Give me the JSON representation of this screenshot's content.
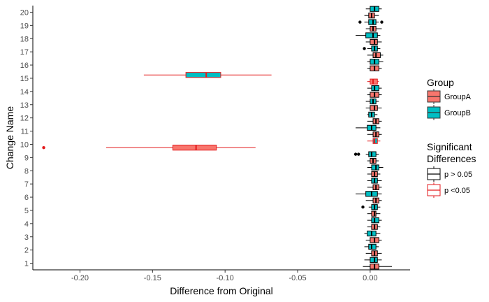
{
  "chart_data": {
    "type": "boxplot",
    "orientation": "horizontal",
    "title": "",
    "xlabel": "Difference from Original",
    "ylabel": "Change Name",
    "xlim": [
      -0.2325,
      0.0275
    ],
    "x_ticks": [
      -0.2,
      -0.15,
      -0.1,
      -0.05,
      0.0
    ],
    "x_tick_labels": [
      "-0.20",
      "-0.15",
      "-0.10",
      "-0.05",
      "0.00"
    ],
    "categories": [
      "1",
      "2",
      "3",
      "4",
      "5",
      "6",
      "7",
      "8",
      "9",
      "10",
      "11",
      "12",
      "13",
      "14",
      "15",
      "16",
      "17",
      "18",
      "19",
      "20"
    ],
    "grid": false,
    "legend_position": "right",
    "colors": {
      "GroupA": "#F8766D",
      "GroupB": "#00BFC4",
      "p > 0.05": "#000000",
      "p <0.05": "#E31A1C"
    },
    "legend": {
      "fill": {
        "title": "Group",
        "entries": [
          "GroupA",
          "GroupB"
        ]
      },
      "color": {
        "title_lines": [
          "Significant",
          "Differences"
        ],
        "entries": [
          "p > 0.05",
          "p <0.05"
        ]
      }
    },
    "series": [
      {
        "name": "GroupA",
        "boxes": [
          {
            "category": "1",
            "min": -0.005,
            "q1": 0.0,
            "median": 0.003,
            "q3": 0.006,
            "max": 0.015,
            "significance": "p > 0.05",
            "outliers": []
          },
          {
            "category": "2",
            "min": -0.003,
            "q1": 0.001,
            "median": 0.003,
            "q3": 0.005,
            "max": 0.008,
            "significance": "p > 0.05",
            "outliers": []
          },
          {
            "category": "3",
            "min": -0.003,
            "q1": 0.0,
            "median": 0.003,
            "q3": 0.006,
            "max": 0.008,
            "significance": "p > 0.05",
            "outliers": []
          },
          {
            "category": "4",
            "min": -0.002,
            "q1": 0.001,
            "median": 0.003,
            "q3": 0.005,
            "max": 0.007,
            "significance": "p > 0.05",
            "outliers": []
          },
          {
            "category": "5",
            "min": -0.002,
            "q1": 0.001,
            "median": 0.003,
            "q3": 0.004,
            "max": 0.007,
            "significance": "p > 0.05",
            "outliers": []
          },
          {
            "category": "6",
            "min": -0.003,
            "q1": 0.002,
            "median": 0.004,
            "q3": 0.006,
            "max": 0.008,
            "significance": "p > 0.05",
            "outliers": []
          },
          {
            "category": "7",
            "min": -0.002,
            "q1": 0.002,
            "median": 0.004,
            "q3": 0.006,
            "max": 0.008,
            "significance": "p > 0.05",
            "outliers": []
          },
          {
            "category": "8",
            "min": -0.002,
            "q1": 0.001,
            "median": 0.003,
            "q3": 0.005,
            "max": 0.007,
            "significance": "p > 0.05",
            "outliers": []
          },
          {
            "category": "9",
            "min": -0.002,
            "q1": 0.0,
            "median": 0.002,
            "q3": 0.004,
            "max": 0.006,
            "significance": "p > 0.05",
            "outliers": []
          },
          {
            "category": "10",
            "min": -0.182,
            "q1": -0.136,
            "median": -0.12,
            "q3": -0.106,
            "max": -0.079,
            "significance": "p <0.05",
            "outliers": [
              -0.225
            ]
          },
          {
            "category": "11",
            "min": -0.002,
            "q1": 0.002,
            "median": 0.004,
            "q3": 0.006,
            "max": 0.008,
            "significance": "p > 0.05",
            "outliers": []
          },
          {
            "category": "12",
            "min": -0.002,
            "q1": 0.002,
            "median": 0.004,
            "q3": 0.006,
            "max": 0.008,
            "significance": "p > 0.05",
            "outliers": []
          },
          {
            "category": "13",
            "min": -0.003,
            "q1": 0.0,
            "median": 0.003,
            "q3": 0.005,
            "max": 0.008,
            "significance": "p > 0.05",
            "outliers": []
          },
          {
            "category": "14",
            "min": -0.002,
            "q1": 0.0,
            "median": 0.003,
            "q3": 0.006,
            "max": 0.008,
            "significance": "p > 0.05",
            "outliers": []
          },
          {
            "category": "15",
            "min": -0.002,
            "q1": 0.0,
            "median": 0.002,
            "q3": 0.005,
            "max": 0.006,
            "significance": "p <0.05",
            "outliers": []
          },
          {
            "category": "16",
            "min": -0.002,
            "q1": 0.0,
            "median": 0.003,
            "q3": 0.006,
            "max": 0.008,
            "significance": "p > 0.05",
            "outliers": []
          },
          {
            "category": "17",
            "min": -0.002,
            "q1": 0.002,
            "median": 0.004,
            "q3": 0.007,
            "max": 0.009,
            "significance": "p > 0.05",
            "outliers": []
          },
          {
            "category": "18",
            "min": -0.003,
            "q1": 0.0,
            "median": 0.003,
            "q3": 0.005,
            "max": 0.008,
            "significance": "p > 0.05",
            "outliers": []
          },
          {
            "category": "19",
            "min": -0.003,
            "q1": 0.0,
            "median": 0.002,
            "q3": 0.004,
            "max": 0.008,
            "significance": "p > 0.05",
            "outliers": []
          },
          {
            "category": "20",
            "min": -0.004,
            "q1": -0.001,
            "median": 0.001,
            "q3": 0.003,
            "max": 0.006,
            "significance": "p > 0.05",
            "outliers": []
          }
        ]
      },
      {
        "name": "GroupB",
        "boxes": [
          {
            "category": "1",
            "min": -0.004,
            "q1": 0.0,
            "median": 0.003,
            "q3": 0.005,
            "max": 0.008,
            "significance": "p > 0.05",
            "outliers": []
          },
          {
            "category": "2",
            "min": -0.004,
            "q1": -0.001,
            "median": 0.001,
            "q3": 0.004,
            "max": 0.006,
            "significance": "p > 0.05",
            "outliers": []
          },
          {
            "category": "3",
            "min": -0.004,
            "q1": -0.002,
            "median": 0.001,
            "q3": 0.004,
            "max": 0.007,
            "significance": "p > 0.05",
            "outliers": []
          },
          {
            "category": "4",
            "min": -0.002,
            "q1": 0.001,
            "median": 0.003,
            "q3": 0.006,
            "max": 0.008,
            "significance": "p > 0.05",
            "outliers": []
          },
          {
            "category": "5",
            "min": -0.001,
            "q1": 0.001,
            "median": 0.003,
            "q3": 0.005,
            "max": 0.007,
            "significance": "p > 0.05",
            "outliers": [
              -0.005
            ]
          },
          {
            "category": "6",
            "min": -0.01,
            "q1": -0.003,
            "median": 0.001,
            "q3": 0.005,
            "max": 0.008,
            "significance": "p > 0.05",
            "outliers": []
          },
          {
            "category": "7",
            "min": -0.002,
            "q1": 0.001,
            "median": 0.003,
            "q3": 0.005,
            "max": 0.008,
            "significance": "p > 0.05",
            "outliers": []
          },
          {
            "category": "8",
            "min": -0.002,
            "q1": 0.001,
            "median": 0.004,
            "q3": 0.006,
            "max": 0.009,
            "significance": "p > 0.05",
            "outliers": []
          },
          {
            "category": "9",
            "min": -0.003,
            "q1": -0.001,
            "median": 0.001,
            "q3": 0.004,
            "max": 0.006,
            "significance": "p > 0.05",
            "outliers": [
              -0.008,
              -0.01
            ]
          },
          {
            "category": "10",
            "min": -0.002,
            "q1": 0.002,
            "median": 0.003,
            "q3": 0.005,
            "max": 0.007,
            "significance": "p <0.05",
            "outliers": []
          },
          {
            "category": "11",
            "min": -0.01,
            "q1": -0.002,
            "median": 0.001,
            "q3": 0.004,
            "max": 0.007,
            "significance": "p > 0.05",
            "outliers": []
          },
          {
            "category": "12",
            "min": -0.002,
            "q1": -0.001,
            "median": 0.001,
            "q3": 0.003,
            "max": 0.005,
            "significance": "p > 0.05",
            "outliers": []
          },
          {
            "category": "13",
            "min": -0.003,
            "q1": 0.0,
            "median": 0.002,
            "q3": 0.004,
            "max": 0.006,
            "significance": "p > 0.05",
            "outliers": []
          },
          {
            "category": "14",
            "min": -0.002,
            "q1": 0.001,
            "median": 0.003,
            "q3": 0.006,
            "max": 0.008,
            "significance": "p > 0.05",
            "outliers": []
          },
          {
            "category": "15",
            "min": -0.156,
            "q1": -0.127,
            "median": -0.113,
            "q3": -0.103,
            "max": -0.068,
            "significance": "p <0.05",
            "outliers": []
          },
          {
            "category": "16",
            "min": -0.002,
            "q1": 0.0,
            "median": 0.003,
            "q3": 0.006,
            "max": 0.009,
            "significance": "p > 0.05",
            "outliers": []
          },
          {
            "category": "17",
            "min": -0.002,
            "q1": 0.001,
            "median": 0.003,
            "q3": 0.005,
            "max": 0.007,
            "significance": "p > 0.05",
            "outliers": [
              -0.004
            ]
          },
          {
            "category": "18",
            "min": -0.01,
            "q1": -0.003,
            "median": 0.002,
            "q3": 0.005,
            "max": 0.007,
            "significance": "p > 0.05",
            "outliers": []
          },
          {
            "category": "19",
            "min": -0.004,
            "q1": -0.001,
            "median": 0.002,
            "q3": 0.004,
            "max": 0.006,
            "significance": "p > 0.05",
            "outliers": [
              -0.007,
              0.008
            ]
          },
          {
            "category": "20",
            "min": -0.003,
            "q1": 0.0,
            "median": 0.003,
            "q3": 0.006,
            "max": 0.008,
            "significance": "p > 0.05",
            "outliers": []
          }
        ]
      }
    ]
  }
}
